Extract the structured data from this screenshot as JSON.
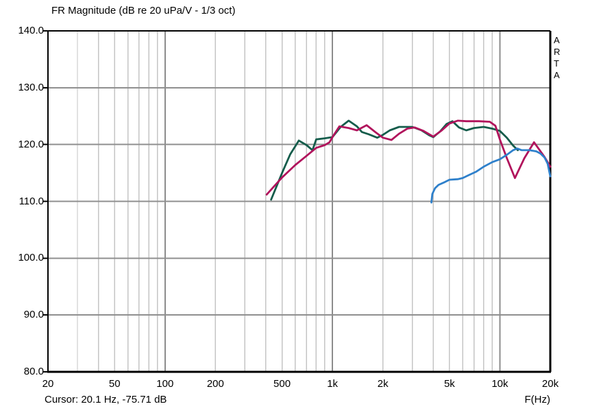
{
  "window": {
    "title": "FR Magnitude (dB re 20 uPa/V - 1/3 oct)",
    "watermark": "ARTA",
    "cursor_readout": "Cursor: 20.1 Hz, -75.71 dB",
    "x_axis_unit_label": "F(Hz)"
  },
  "chart_data": {
    "type": "line",
    "title": "FR Magnitude (dB re 20 uPa/V - 1/3 oct)",
    "xlabel": "F(Hz)",
    "ylabel": "dB re 20 uPa/V",
    "x_scale": "log",
    "xlim": [
      20,
      20000
    ],
    "ylim": [
      80,
      140
    ],
    "grid": {
      "on": true,
      "x_minor": [
        30,
        40,
        50,
        60,
        70,
        80,
        90,
        200,
        300,
        400,
        500,
        600,
        700,
        800,
        900,
        2000,
        3000,
        4000,
        5000,
        6000,
        7000,
        8000,
        9000
      ],
      "x_major": [
        100,
        1000,
        10000
      ],
      "y_lines": [
        90,
        100,
        110,
        120,
        130
      ],
      "minor_color": "#c4c4c4",
      "major_color": "#8c8c8c",
      "y_color": "#8f8f8f",
      "frame_color": "#000000"
    },
    "y_ticks": [
      {
        "value": 140,
        "label": "140.0"
      },
      {
        "value": 130,
        "label": "130.0"
      },
      {
        "value": 120,
        "label": "120.0"
      },
      {
        "value": 110,
        "label": "110.0"
      },
      {
        "value": 100,
        "label": "100.0"
      },
      {
        "value": 90,
        "label": "90.0"
      },
      {
        "value": 80,
        "label": "80.0"
      }
    ],
    "x_ticks": [
      {
        "value": 20,
        "label": "20"
      },
      {
        "value": 50,
        "label": "50"
      },
      {
        "value": 100,
        "label": "100"
      },
      {
        "value": 200,
        "label": "200"
      },
      {
        "value": 500,
        "label": "500"
      },
      {
        "value": 1000,
        "label": "1k"
      },
      {
        "value": 2000,
        "label": "2k"
      },
      {
        "value": 5000,
        "label": "5k"
      },
      {
        "value": 10000,
        "label": "10k"
      },
      {
        "value": 20000,
        "label": "20k"
      }
    ],
    "legend": {
      "position": "none"
    },
    "series": [
      {
        "name": "overlay-curve-green",
        "color": "#145c4b",
        "points": [
          [
            430,
            110.3
          ],
          [
            500,
            115.0
          ],
          [
            560,
            118.3
          ],
          [
            630,
            120.7
          ],
          [
            700,
            119.9
          ],
          [
            760,
            119.0
          ],
          [
            800,
            120.9
          ],
          [
            900,
            121.1
          ],
          [
            1000,
            121.3
          ],
          [
            1120,
            123.1
          ],
          [
            1250,
            124.2
          ],
          [
            1400,
            123.2
          ],
          [
            1500,
            122.2
          ],
          [
            1650,
            121.8
          ],
          [
            1850,
            121.2
          ],
          [
            2000,
            121.7
          ],
          [
            2200,
            122.5
          ],
          [
            2500,
            123.1
          ],
          [
            3000,
            123.1
          ],
          [
            3400,
            122.5
          ],
          [
            3800,
            121.6
          ],
          [
            4000,
            121.3
          ],
          [
            4400,
            122.3
          ],
          [
            4800,
            123.6
          ],
          [
            5200,
            124.1
          ],
          [
            5700,
            123.0
          ],
          [
            6300,
            122.5
          ],
          [
            7000,
            122.9
          ],
          [
            8000,
            123.1
          ],
          [
            9000,
            122.8
          ],
          [
            10000,
            122.4
          ],
          [
            11000,
            121.2
          ],
          [
            12000,
            119.8
          ],
          [
            12800,
            119.0
          ]
        ]
      },
      {
        "name": "overlay-curve-magenta",
        "color": "#b1135c",
        "points": [
          [
            405,
            111.2
          ],
          [
            460,
            113.0
          ],
          [
            500,
            114.2
          ],
          [
            600,
            116.4
          ],
          [
            700,
            118.0
          ],
          [
            800,
            119.4
          ],
          [
            900,
            119.9
          ],
          [
            960,
            120.4
          ],
          [
            1000,
            121.3
          ],
          [
            1100,
            123.2
          ],
          [
            1250,
            122.9
          ],
          [
            1400,
            122.5
          ],
          [
            1600,
            123.4
          ],
          [
            1800,
            122.2
          ],
          [
            2000,
            121.2
          ],
          [
            2250,
            120.8
          ],
          [
            2500,
            121.9
          ],
          [
            2800,
            122.8
          ],
          [
            3100,
            123.0
          ],
          [
            3500,
            122.4
          ],
          [
            4000,
            121.4
          ],
          [
            4500,
            122.5
          ],
          [
            5000,
            123.7
          ],
          [
            5600,
            124.2
          ],
          [
            6300,
            124.1
          ],
          [
            7500,
            124.1
          ],
          [
            8700,
            124.0
          ],
          [
            9400,
            123.3
          ],
          [
            10000,
            120.9
          ],
          [
            11000,
            117.6
          ],
          [
            12300,
            114.1
          ],
          [
            14000,
            117.6
          ],
          [
            16000,
            120.4
          ],
          [
            18500,
            117.8
          ],
          [
            20000,
            116.1
          ]
        ]
      },
      {
        "name": "overlay-curve-blue",
        "color": "#2e80cb",
        "points": [
          [
            3900,
            109.8
          ],
          [
            3950,
            111.3
          ],
          [
            4100,
            112.3
          ],
          [
            4300,
            112.9
          ],
          [
            4700,
            113.4
          ],
          [
            5000,
            113.8
          ],
          [
            5600,
            113.9
          ],
          [
            6000,
            114.1
          ],
          [
            6600,
            114.7
          ],
          [
            7200,
            115.2
          ],
          [
            8000,
            116.1
          ],
          [
            9000,
            116.9
          ],
          [
            10000,
            117.4
          ],
          [
            11000,
            118.2
          ],
          [
            12000,
            119.0
          ],
          [
            12700,
            119.3
          ],
          [
            13500,
            119.0
          ],
          [
            15000,
            119.0
          ],
          [
            16500,
            118.8
          ],
          [
            17500,
            118.4
          ],
          [
            18500,
            117.7
          ],
          [
            19300,
            116.6
          ],
          [
            20000,
            114.4
          ]
        ]
      }
    ]
  }
}
